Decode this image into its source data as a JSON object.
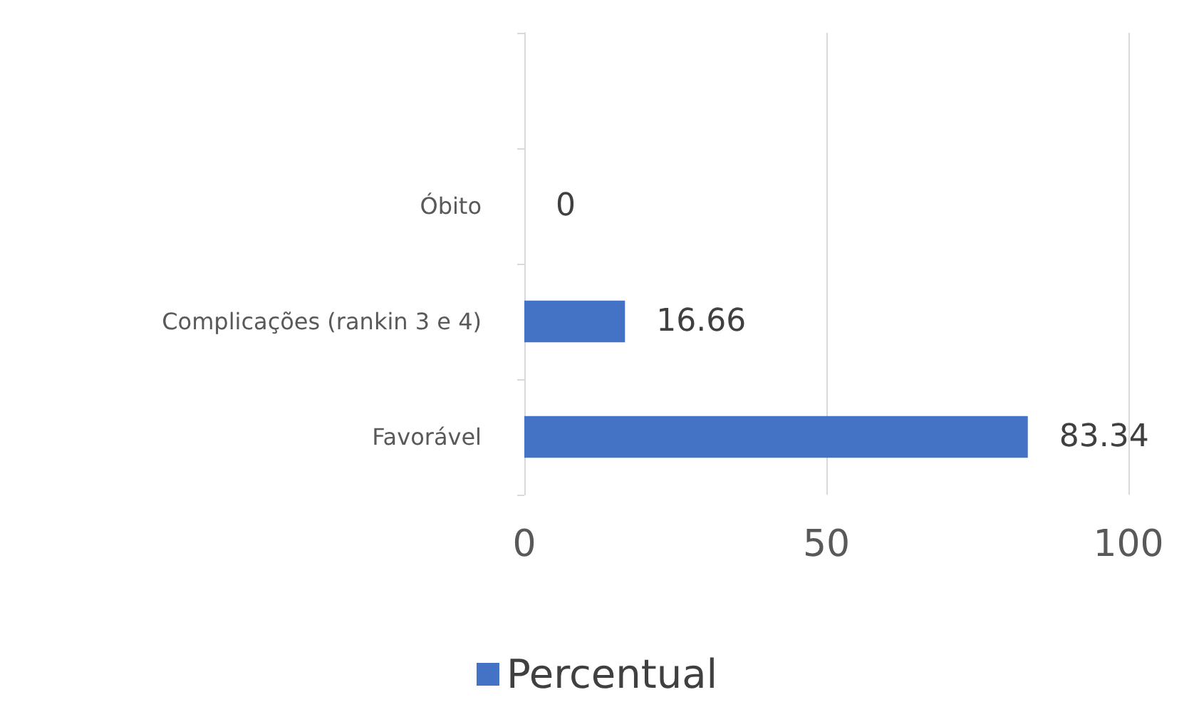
{
  "chart_data": {
    "type": "bar",
    "orientation": "horizontal",
    "categories": [
      null,
      "Óbito",
      "Complicações (rankin 3 e 4)",
      "Favorável"
    ],
    "series": [
      {
        "name": "Percentual",
        "color": "#4472c4",
        "values": [
          null,
          0,
          16.66,
          83.34
        ]
      }
    ],
    "xlim": [
      0,
      100
    ],
    "xticks": [
      0,
      50,
      100
    ],
    "grid": "x",
    "legend": "bottom",
    "data_labels": true
  }
}
